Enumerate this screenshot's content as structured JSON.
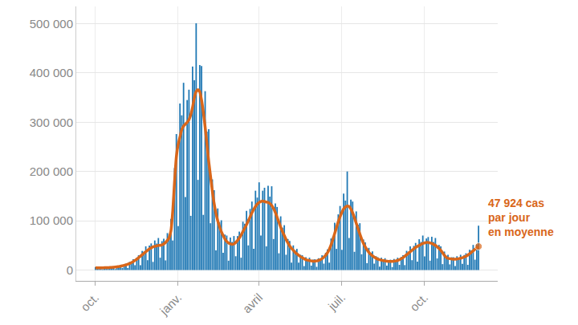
{
  "chart_data": {
    "type": "bar",
    "categories": [
      "oct.",
      null,
      null,
      null,
      null,
      null,
      null,
      null,
      null,
      null,
      null,
      null,
      null,
      null,
      null,
      null,
      null,
      null,
      null,
      null,
      null,
      null,
      null,
      null,
      null,
      null,
      null,
      null,
      null,
      null,
      null,
      null,
      null,
      null,
      null,
      null,
      null,
      null,
      null,
      null,
      null,
      null,
      null,
      null,
      null,
      null,
      "janv.",
      null,
      null,
      null,
      null,
      null,
      null,
      null,
      null,
      null,
      null,
      null,
      null,
      null,
      null,
      null,
      null,
      null,
      null,
      null,
      null,
      null,
      null,
      null,
      null,
      null,
      null,
      null,
      null,
      null,
      null,
      null,
      null,
      null,
      null,
      null,
      null,
      null,
      null,
      null,
      null,
      null,
      null,
      null,
      null,
      "avril",
      null,
      null,
      null,
      null,
      null,
      null,
      null,
      null,
      null,
      null,
      null,
      null,
      null,
      null,
      null,
      null,
      null,
      null,
      null,
      null,
      null,
      null,
      null,
      null,
      null,
      null,
      null,
      null,
      null,
      null,
      null,
      null,
      null,
      null,
      null,
      null,
      null,
      null,
      null,
      null,
      null,
      null,
      null,
      null,
      null,
      "juil.",
      null,
      null,
      null,
      null,
      null,
      null,
      null,
      null,
      null,
      null,
      null,
      null,
      null,
      null,
      null,
      null,
      null,
      null,
      null,
      null,
      null,
      null,
      null,
      null,
      null,
      null,
      null,
      null,
      null,
      null,
      null,
      null,
      null,
      null,
      null,
      null,
      null,
      null,
      null,
      null,
      null,
      null,
      null,
      null,
      null,
      "oct.",
      null,
      null,
      null,
      null,
      null,
      null,
      null,
      null,
      null,
      null,
      null,
      null,
      null,
      null,
      null,
      null,
      null,
      null,
      null,
      null,
      null,
      null,
      null,
      null,
      null,
      null,
      null,
      null,
      null,
      null
    ],
    "series": [
      {
        "type": "bar",
        "color": "#1f78b4",
        "values": [
          5900,
          2300,
          5100,
          5400,
          1600,
          5900,
          5300,
          6500,
          2600,
          6100,
          6700,
          2100,
          8100,
          7800,
          10100,
          4300,
          10900,
          12600,
          4100,
          16500,
          16500,
          22100,
          9800,
          25300,
          30000,
          9800,
          38800,
          37400,
          48100,
          20000,
          49500,
          54000,
          16500,
          60000,
          53900,
          65000,
          25000,
          58700,
          63600,
          19600,
          75000,
          72600,
          104000,
          60000,
          207000,
          276000,
          89000,
          338000,
          314000,
          380000,
          148000,
          345000,
          366000,
          110000,
          413000,
          385000,
          501000,
          183000,
          416000,
          414000,
          112000,
          363000,
          281000,
          286000,
          95000,
          184000,
          162000,
          40000,
          125000,
          97000,
          101000,
          35000,
          72000,
          70000,
          19000,
          66000,
          57000,
          69000,
          28000,
          69000,
          78000,
          25000,
          98000,
          94000,
          120000,
          50000,
          124000,
          139000,
          43000,
          161000,
          147000,
          178000,
          70000,
          161000,
          167000,
          48000,
          171000,
          149000,
          170000,
          63000,
          135000,
          128000,
          34000,
          109000,
          86000,
          91000,
          31000,
          63000,
          59000,
          15000,
          50000,
          40000,
          43000,
          15000,
          31000,
          30000,
          8000,
          26000,
          22000,
          25000,
          9000,
          21000,
          22000,
          6500,
          24000,
          23000,
          30000,
          13000,
          35000,
          42000,
          15000,
          64000,
          68000,
          96000,
          43000,
          113000,
          130000,
          41000,
          155000,
          141000,
          200000,
          65000,
          143000,
          139000,
          37000,
          119000,
          92000,
          95000,
          32000,
          62000,
          56000,
          14000,
          45000,
          35000,
          38000,
          13000,
          28000,
          26000,
          7000,
          25000,
          21000,
          24000,
          9000,
          20000,
          21000,
          6000,
          22500,
          20000,
          25000,
          10500,
          26500,
          30000,
          10000,
          39000,
          37000,
          48000,
          20000,
          49000,
          55000,
          17000,
          62500,
          57000,
          70000,
          27500,
          64000,
          67000,
          19000,
          67500,
          57000,
          65000,
          23500,
          51000,
          48000,
          12000,
          37500,
          29000,
          31000,
          11500,
          26000,
          26000,
          8000,
          28000,
          25000,
          31000,
          12500,
          30500,
          34000,
          10500,
          41000,
          40000,
          51000,
          21000,
          52000,
          90000
        ]
      },
      {
        "type": "line",
        "color": "#d9661a",
        "values": [
          4500,
          4500,
          4400,
          4500,
          4600,
          4700,
          4800,
          5000,
          5100,
          5300,
          5600,
          6000,
          6500,
          7100,
          7800,
          8600,
          9500,
          10500,
          11800,
          13200,
          15000,
          17000,
          19500,
          22000,
          25000,
          28000,
          31000,
          34000,
          37000,
          40000,
          43000,
          45000,
          47000,
          48000,
          49000,
          50000,
          50000,
          51000,
          53000,
          56000,
          60000,
          66000,
          80000,
          120000,
          180000,
          230000,
          255000,
          270000,
          285000,
          292000,
          296000,
          300000,
          305000,
          315000,
          330000,
          350000,
          362000,
          366000,
          362000,
          345000,
          320000,
          290000,
          255000,
          220000,
          190000,
          160000,
          135000,
          115000,
          100000,
          88000,
          78000,
          70000,
          63000,
          58000,
          55000,
          53000,
          52000,
          53000,
          56000,
          60000,
          65000,
          71000,
          78000,
          85000,
          92000,
          100000,
          108000,
          116000,
          123000,
          129000,
          134000,
          137000,
          139000,
          140000,
          139000,
          138000,
          137000,
          135000,
          131000,
          125000,
          117000,
          107000,
          97000,
          87000,
          78000,
          70000,
          62000,
          55000,
          49000,
          44000,
          40000,
          36000,
          33000,
          30000,
          27000,
          25000,
          23000,
          21000,
          20000,
          19000,
          18500,
          18000,
          18000,
          18500,
          19500,
          21000,
          23000,
          26000,
          30000,
          35000,
          42000,
          51000,
          62000,
          74000,
          86000,
          98000,
          108000,
          117000,
          124000,
          128000,
          130000,
          129000,
          124000,
          116000,
          106000,
          95000,
          84000,
          73000,
          63000,
          54000,
          47000,
          41000,
          36000,
          32000,
          29000,
          26000,
          24000,
          22000,
          21000,
          20000,
          19000,
          18500,
          18000,
          17500,
          17500,
          17500,
          18000,
          18500,
          19500,
          21000,
          23000,
          25000,
          28000,
          31000,
          34000,
          37000,
          40000,
          43000,
          46000,
          48000,
          50000,
          52000,
          54000,
          55000,
          56000,
          56000,
          55000,
          54000,
          52000,
          50000,
          47000,
          44000,
          40000,
          35000,
          30000,
          26000,
          24000,
          23000,
          22500,
          22000,
          22000,
          22500,
          23000,
          24000,
          25000,
          26500,
          28000,
          30000,
          33000,
          36000,
          39000,
          42000,
          45000,
          47924
        ]
      }
    ],
    "annotation": [
      "47 924 cas",
      "par jour",
      "en moyenne"
    ],
    "ylim": [
      -22000,
      535000
    ],
    "yticks": [
      0,
      {
        "value": 100000,
        "label": "100 000"
      },
      {
        "value": 200000,
        "label": "200 000"
      },
      {
        "value": 300000,
        "label": "300 000"
      },
      {
        "value": 400000,
        "label": "400 000"
      },
      {
        "value": 500000,
        "label": "500 000"
      }
    ],
    "grid": true
  }
}
